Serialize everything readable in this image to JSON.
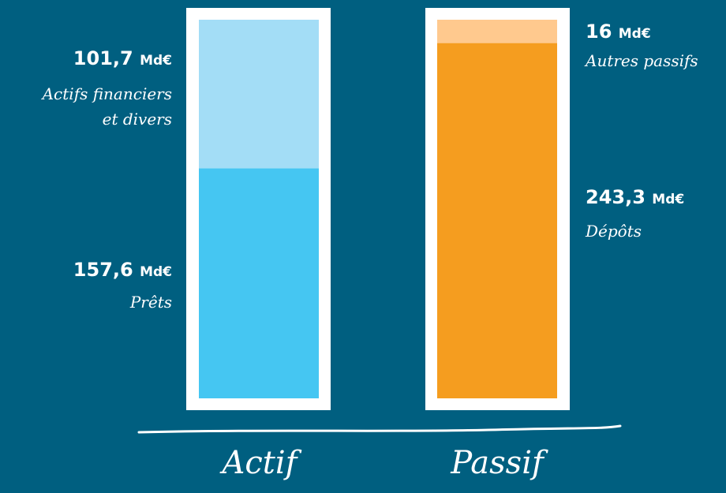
{
  "chart_data": {
    "type": "bar",
    "stacked": true,
    "categories": [
      "Actif",
      "Passif"
    ],
    "unit": "Md€",
    "series": [
      {
        "category": "Actif",
        "segments": [
          {
            "value": 157.6,
            "value_label": "157,6",
            "label": "Prêts",
            "color": "#45c6f2"
          },
          {
            "value": 101.7,
            "value_label": "101,7",
            "label_lines": [
              "Actifs financiers",
              "et divers"
            ],
            "color": "#a3ddf6"
          }
        ]
      },
      {
        "category": "Passif",
        "segments": [
          {
            "value": 243.3,
            "value_label": "243,3",
            "label": "Dépôts",
            "color": "#f59d1f"
          },
          {
            "value": 16,
            "value_label": "16",
            "label": "Autres passifs",
            "color": "#ffc98e"
          }
        ]
      }
    ],
    "colors": {
      "background": "#005f80",
      "frame": "#ffffff"
    }
  }
}
